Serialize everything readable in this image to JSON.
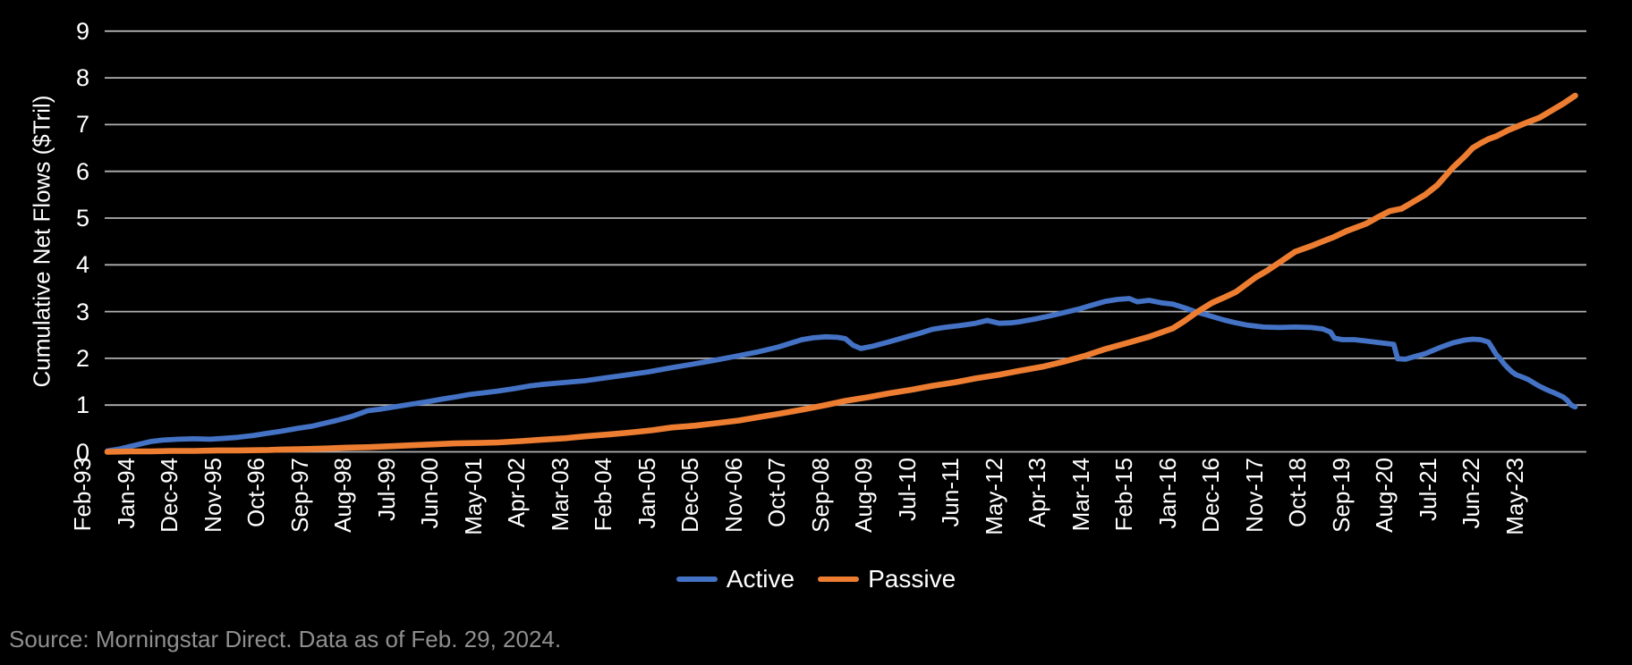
{
  "chart_data": {
    "type": "line",
    "title": "",
    "xlabel": "",
    "ylabel": "Cumulative Net Flows ($Tril)",
    "ylim": [
      0,
      9
    ],
    "grid": "horizontal",
    "legend_position": "bottom-center",
    "gridline_color": "#b0b0b0",
    "background_color": "#000000",
    "text_color": "#ffffff",
    "y_ticks": [
      "0",
      "1",
      "2",
      "3",
      "4",
      "5",
      "6",
      "7",
      "8",
      "9"
    ],
    "x_unit": "months since Feb-1993",
    "x_tick_interval_months": 11,
    "x_range_months": [
      0,
      372
    ],
    "x_tick_labels": [
      "Feb-93",
      "Jan-94",
      "Dec-94",
      "Nov-95",
      "Oct-96",
      "Sep-97",
      "Aug-98",
      "Jul-99",
      "Jun-00",
      "May-01",
      "Apr-02",
      "Mar-03",
      "Feb-04",
      "Jan-05",
      "Dec-05",
      "Nov-06",
      "Oct-07",
      "Sep-08",
      "Aug-09",
      "Jul-10",
      "Jun-11",
      "May-12",
      "Apr-13",
      "Mar-14",
      "Feb-15",
      "Jan-16",
      "Dec-16",
      "Nov-17",
      "Oct-18",
      "Sep-19",
      "Aug-20",
      "Jul-21",
      "Jun-22",
      "May-23"
    ],
    "series": [
      {
        "name": "Active",
        "color": "#4472c4",
        "points": [
          [
            0,
            0.02
          ],
          [
            3,
            0.06
          ],
          [
            6,
            0.12
          ],
          [
            9,
            0.18
          ],
          [
            11,
            0.22
          ],
          [
            14,
            0.25
          ],
          [
            18,
            0.27
          ],
          [
            22,
            0.28
          ],
          [
            26,
            0.27
          ],
          [
            30,
            0.29
          ],
          [
            33,
            0.31
          ],
          [
            37,
            0.35
          ],
          [
            40,
            0.39
          ],
          [
            44,
            0.44
          ],
          [
            48,
            0.5
          ],
          [
            52,
            0.55
          ],
          [
            55,
            0.61
          ],
          [
            58,
            0.67
          ],
          [
            62,
            0.76
          ],
          [
            66,
            0.88
          ],
          [
            69,
            0.91
          ],
          [
            72,
            0.95
          ],
          [
            77,
            1.02
          ],
          [
            81,
            1.07
          ],
          [
            85,
            1.13
          ],
          [
            88,
            1.17
          ],
          [
            92,
            1.23
          ],
          [
            96,
            1.27
          ],
          [
            99,
            1.3
          ],
          [
            103,
            1.35
          ],
          [
            107,
            1.41
          ],
          [
            110,
            1.44
          ],
          [
            114,
            1.47
          ],
          [
            118,
            1.5
          ],
          [
            121,
            1.52
          ],
          [
            126,
            1.58
          ],
          [
            132,
            1.65
          ],
          [
            137,
            1.71
          ],
          [
            143,
            1.8
          ],
          [
            148,
            1.87
          ],
          [
            154,
            1.96
          ],
          [
            159,
            2.04
          ],
          [
            165,
            2.14
          ],
          [
            170,
            2.24
          ],
          [
            173,
            2.32
          ],
          [
            176,
            2.4
          ],
          [
            179,
            2.44
          ],
          [
            182,
            2.46
          ],
          [
            185,
            2.45
          ],
          [
            187,
            2.42
          ],
          [
            189,
            2.28
          ],
          [
            191,
            2.21
          ],
          [
            194,
            2.26
          ],
          [
            198,
            2.35
          ],
          [
            203,
            2.47
          ],
          [
            206,
            2.54
          ],
          [
            209,
            2.62
          ],
          [
            212,
            2.66
          ],
          [
            216,
            2.7
          ],
          [
            220,
            2.75
          ],
          [
            223,
            2.81
          ],
          [
            226,
            2.75
          ],
          [
            229,
            2.76
          ],
          [
            231,
            2.78
          ],
          [
            235,
            2.84
          ],
          [
            239,
            2.91
          ],
          [
            242,
            2.97
          ],
          [
            246,
            3.05
          ],
          [
            250,
            3.15
          ],
          [
            253,
            3.22
          ],
          [
            256,
            3.26
          ],
          [
            259,
            3.28
          ],
          [
            261,
            3.21
          ],
          [
            264,
            3.24
          ],
          [
            267,
            3.19
          ],
          [
            270,
            3.16
          ],
          [
            273,
            3.08
          ],
          [
            276,
            2.99
          ],
          [
            279,
            2.92
          ],
          [
            283,
            2.82
          ],
          [
            286,
            2.76
          ],
          [
            289,
            2.71
          ],
          [
            293,
            2.67
          ],
          [
            297,
            2.66
          ],
          [
            301,
            2.67
          ],
          [
            305,
            2.66
          ],
          [
            308,
            2.63
          ],
          [
            310,
            2.56
          ],
          [
            311,
            2.43
          ],
          [
            313,
            2.4
          ],
          [
            316,
            2.4
          ],
          [
            319,
            2.37
          ],
          [
            322,
            2.34
          ],
          [
            325,
            2.31
          ],
          [
            326,
            2.3
          ],
          [
            327,
            1.99
          ],
          [
            329,
            1.98
          ],
          [
            331,
            2.03
          ],
          [
            334,
            2.1
          ],
          [
            338,
            2.24
          ],
          [
            341,
            2.33
          ],
          [
            344,
            2.39
          ],
          [
            346,
            2.41
          ],
          [
            348,
            2.4
          ],
          [
            350,
            2.35
          ],
          [
            351,
            2.22
          ],
          [
            352,
            2.08
          ],
          [
            353,
            1.99
          ],
          [
            354,
            1.88
          ],
          [
            355,
            1.79
          ],
          [
            356,
            1.71
          ],
          [
            357,
            1.65
          ],
          [
            358,
            1.62
          ],
          [
            360,
            1.55
          ],
          [
            362,
            1.45
          ],
          [
            363,
            1.4
          ],
          [
            365,
            1.32
          ],
          [
            367,
            1.25
          ],
          [
            369,
            1.17
          ],
          [
            370,
            1.1
          ],
          [
            371,
            1.0
          ],
          [
            372,
            0.96
          ]
        ]
      },
      {
        "name": "Passive",
        "color": "#ed7d31",
        "points": [
          [
            0,
            0.0
          ],
          [
            6,
            0.01
          ],
          [
            11,
            0.01
          ],
          [
            16,
            0.02
          ],
          [
            22,
            0.02
          ],
          [
            28,
            0.03
          ],
          [
            33,
            0.03
          ],
          [
            41,
            0.04
          ],
          [
            44,
            0.05
          ],
          [
            50,
            0.06
          ],
          [
            55,
            0.07
          ],
          [
            61,
            0.09
          ],
          [
            66,
            0.1
          ],
          [
            72,
            0.12
          ],
          [
            77,
            0.14
          ],
          [
            83,
            0.16
          ],
          [
            88,
            0.18
          ],
          [
            94,
            0.19
          ],
          [
            99,
            0.2
          ],
          [
            105,
            0.23
          ],
          [
            110,
            0.26
          ],
          [
            116,
            0.29
          ],
          [
            121,
            0.33
          ],
          [
            127,
            0.37
          ],
          [
            132,
            0.41
          ],
          [
            138,
            0.46
          ],
          [
            143,
            0.52
          ],
          [
            149,
            0.56
          ],
          [
            154,
            0.61
          ],
          [
            160,
            0.67
          ],
          [
            165,
            0.74
          ],
          [
            170,
            0.81
          ],
          [
            176,
            0.9
          ],
          [
            182,
            1.0
          ],
          [
            187,
            1.09
          ],
          [
            193,
            1.17
          ],
          [
            198,
            1.25
          ],
          [
            204,
            1.33
          ],
          [
            209,
            1.41
          ],
          [
            215,
            1.49
          ],
          [
            220,
            1.57
          ],
          [
            226,
            1.65
          ],
          [
            231,
            1.73
          ],
          [
            237,
            1.82
          ],
          [
            242,
            1.92
          ],
          [
            248,
            2.06
          ],
          [
            253,
            2.2
          ],
          [
            259,
            2.34
          ],
          [
            264,
            2.46
          ],
          [
            270,
            2.64
          ],
          [
            273,
            2.8
          ],
          [
            276,
            2.98
          ],
          [
            280,
            3.19
          ],
          [
            283,
            3.3
          ],
          [
            286,
            3.42
          ],
          [
            291,
            3.73
          ],
          [
            294,
            3.88
          ],
          [
            297,
            4.05
          ],
          [
            301,
            4.28
          ],
          [
            305,
            4.4
          ],
          [
            308,
            4.5
          ],
          [
            311,
            4.6
          ],
          [
            314,
            4.72
          ],
          [
            319,
            4.88
          ],
          [
            322,
            5.02
          ],
          [
            325,
            5.15
          ],
          [
            328,
            5.2
          ],
          [
            330,
            5.3
          ],
          [
            334,
            5.5
          ],
          [
            337,
            5.7
          ],
          [
            341,
            6.08
          ],
          [
            344,
            6.32
          ],
          [
            346,
            6.5
          ],
          [
            348,
            6.6
          ],
          [
            350,
            6.69
          ],
          [
            352,
            6.75
          ],
          [
            355,
            6.88
          ],
          [
            359,
            7.02
          ],
          [
            363,
            7.15
          ],
          [
            366,
            7.3
          ],
          [
            369,
            7.45
          ],
          [
            372,
            7.62
          ]
        ]
      }
    ],
    "source": "Source: Morningstar Direct. Data as of Feb. 29, 2024."
  }
}
